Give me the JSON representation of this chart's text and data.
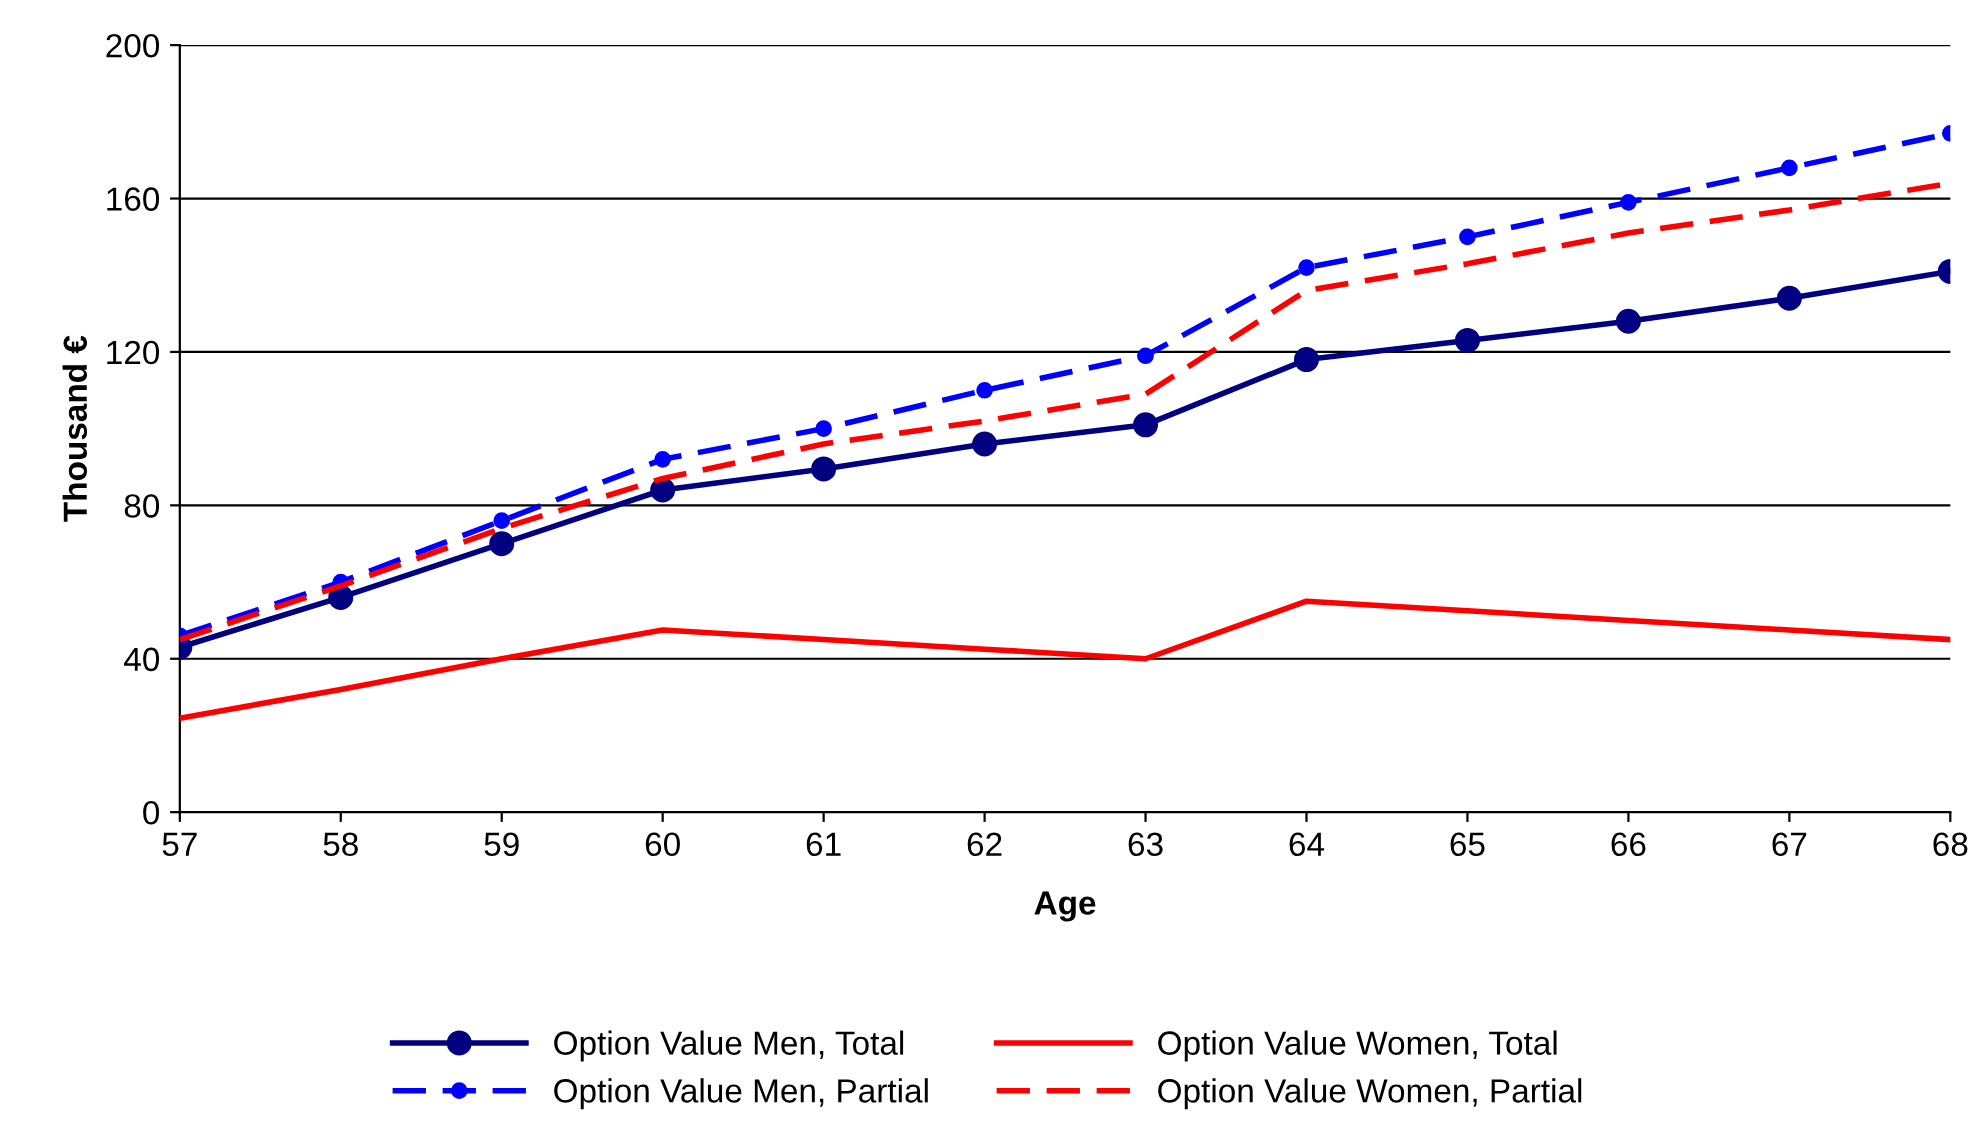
{
  "chart_data": {
    "type": "line",
    "xlabel": "Age",
    "ylabel": "Thousand €",
    "x": [
      57,
      58,
      59,
      60,
      61,
      62,
      63,
      64,
      65,
      66,
      67,
      68
    ],
    "xlim": [
      57,
      68
    ],
    "xticks": [
      57,
      58,
      59,
      60,
      61,
      62,
      63,
      64,
      65,
      66,
      67,
      68
    ],
    "ylim": [
      0,
      200
    ],
    "yticks": [
      0,
      40,
      80,
      120,
      160,
      200
    ],
    "grid": "y",
    "legend": "bottom",
    "series": [
      {
        "name": "Option Value Men, Total",
        "color": "#000080",
        "marker": "circle",
        "line_style": "solid",
        "values": [
          43,
          56,
          70,
          84,
          89.5,
          96,
          101,
          118,
          123,
          128,
          134,
          141
        ]
      },
      {
        "name": "Option Value Men, Partial",
        "color": "#0000ff",
        "marker": "circle",
        "line_style": "dashed",
        "values": [
          46,
          60,
          76,
          92,
          100,
          110,
          119,
          142,
          150,
          159,
          168,
          177
        ]
      },
      {
        "name": "Option Value Women, Total",
        "color": "#ff0000",
        "marker": "none",
        "line_style": "solid",
        "values": [
          24.5,
          32,
          40,
          47.5,
          45,
          42.5,
          40,
          55,
          52.5,
          50,
          47.5,
          45
        ]
      },
      {
        "name": "Option Value Women, Partial",
        "color": "#ff0000",
        "marker": "none",
        "line_style": "dashed",
        "values": [
          45,
          59,
          74,
          87,
          96,
          102,
          109,
          136,
          143,
          151,
          157,
          164
        ]
      }
    ]
  }
}
